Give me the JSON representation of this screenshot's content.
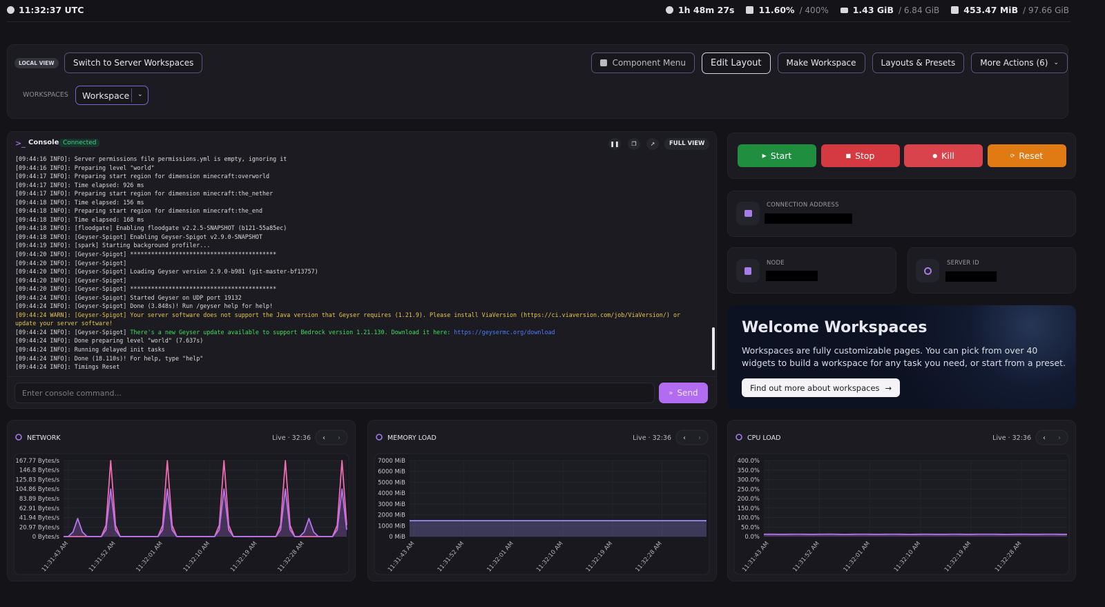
{
  "status_bar": {
    "time": "11:32:37 UTC",
    "uptime": "1h 48m 27s",
    "cpu": "11.60%",
    "cpu_limit": "/ 400%",
    "memory": "1.43 GiB",
    "memory_limit": "/ 6.84 GiB",
    "disk": "453.47 MiB",
    "disk_limit": "/ 97.66 GiB"
  },
  "toolbar": {
    "view_badge": "LOCAL VIEW",
    "switch_button": "Switch to Server Workspaces",
    "actions": [
      "Component Menu",
      "Edit Layout",
      "Make Workspace",
      "Layouts & Presets",
      "More Actions (6)"
    ],
    "workspaces_label": "WORKSPACES",
    "workspace_select": "Workspace"
  },
  "console": {
    "title": "Console",
    "status": "Connected",
    "full_view": "FULL VIEW",
    "lines": [
      {
        "text": "[09:44:16 INFO]: Server permissions file permissions.yml is empty, ignoring it"
      },
      {
        "text": "[09:44:16 INFO]: Preparing level \"world\""
      },
      {
        "text": "[09:44:17 INFO]: Preparing start region for dimension minecraft:overworld"
      },
      {
        "text": "[09:44:17 INFO]: Time elapsed: 926 ms"
      },
      {
        "text": "[09:44:17 INFO]: Preparing start region for dimension minecraft:the_nether"
      },
      {
        "text": "[09:44:18 INFO]: Time elapsed: 156 ms"
      },
      {
        "text": "[09:44:18 INFO]: Preparing start region for dimension minecraft:the_end"
      },
      {
        "text": "[09:44:18 INFO]: Time elapsed: 168 ms"
      },
      {
        "text": "[09:44:18 INFO]: [floodgate] Enabling floodgate v2.2.5-SNAPSHOT (b121-55a85ec)"
      },
      {
        "text": "[09:44:18 INFO]: [Geyser-Spigot] Enabling Geyser-Spigot v2.9.0-SNAPSHOT"
      },
      {
        "text": "[09:44:19 INFO]: [spark] Starting background profiler..."
      },
      {
        "text": "[09:44:20 INFO]: [Geyser-Spigot] ******************************************"
      },
      {
        "text": "[09:44:20 INFO]: [Geyser-Spigot]"
      },
      {
        "text": "[09:44:20 INFO]: [Geyser-Spigot] Loading Geyser version 2.9.0-b981 (git-master-bf13757)"
      },
      {
        "text": "[09:44:20 INFO]: [Geyser-Spigot]"
      },
      {
        "text": "[09:44:20 INFO]: [Geyser-Spigot] ******************************************"
      },
      {
        "text": "[09:44:24 INFO]: [Geyser-Spigot] Started Geyser on UDP port 19132"
      },
      {
        "text": "[09:44:24 INFO]: [Geyser-Spigot] Done (3.848s)! Run /geyser help for help!"
      },
      {
        "text": "[09:44:24 WARN]: [Geyser-Spigot] Your server software does not support the Java version that Geyser requires (1.21.9). Please install ViaVersion (https://ci.viaversion.com/job/ViaVersion/) or",
        "color": "#e6c84a"
      },
      {
        "text": "update your server software!",
        "color": "#e6c84a"
      },
      {
        "text": "[09:44:24 INFO]: [Geyser-Spigot] ",
        "rest": "There's a new Geyser update available to support Bedrock version 1.21.130. Download it here: ",
        "rest_color": "#3ee05a",
        "link": "https://geysermc.org/download"
      },
      {
        "text": "[09:44:24 INFO]: Done preparing level \"world\" (7.637s)"
      },
      {
        "text": "[09:44:24 INFO]: Running delayed init tasks"
      },
      {
        "text": "[09:44:24 INFO]: Done (18.110s)! For help, type \"help\""
      },
      {
        "text": "[09:44:24 INFO]: Timings Reset"
      }
    ],
    "input_placeholder": "Enter console command...",
    "send": "Send"
  },
  "power": [
    {
      "label": "Start",
      "color": "#1f8e3f"
    },
    {
      "label": "Stop",
      "color": "#d43a40"
    },
    {
      "label": "Kill",
      "color": "#d9434b"
    },
    {
      "label": "Reset",
      "color": "#e07a12"
    }
  ],
  "info": {
    "connection_label": "CONNECTION ADDRESS",
    "node_label": "NODE",
    "server_id_label": "SERVER ID"
  },
  "welcome": {
    "title": "Welcome Workspaces",
    "text": "Workspaces are fully customizable pages. You can pick from over 40 widgets to build a workspace for any task you need, or start from a preset.",
    "button": "Find out more about workspaces"
  },
  "charts": [
    {
      "type": "line",
      "title": "NETWORK",
      "live": "Live · 32:36",
      "ylim": [
        0,
        167.77
      ],
      "yticks": [
        {
          "value": 0,
          "label": "0 Bytes/s"
        },
        {
          "value": 20.97,
          "label": "20.97 Bytes/s"
        },
        {
          "value": 41.94,
          "label": "41.94 Bytes/s"
        },
        {
          "value": 62.91,
          "label": "62.91 Bytes/s"
        },
        {
          "value": 83.89,
          "label": "83.89 Bytes/s"
        },
        {
          "value": 104.86,
          "label": "104.86 Bytes/s"
        },
        {
          "value": 125.83,
          "label": "125.83 Bytes/s"
        },
        {
          "value": 146.8,
          "label": "146.8 Bytes/s"
        },
        {
          "value": 167.77,
          "label": "167.77 Bytes/s"
        }
      ],
      "xlim": [
        0,
        60
      ],
      "xticks": [
        {
          "value": 1,
          "label": "11:31:43 AM"
        },
        {
          "value": 11,
          "label": "11:31:52 AM"
        },
        {
          "value": 21,
          "label": "11:32:01 AM"
        },
        {
          "value": 31,
          "label": "11:32:10 AM"
        },
        {
          "value": 41,
          "label": "11:32:19 AM"
        },
        {
          "value": 51,
          "label": "11:32:28 AM"
        }
      ],
      "series": [
        {
          "color": "#f06bb0",
          "values": [
            0,
            0,
            0,
            0,
            0,
            0,
            0,
            0,
            0,
            25,
            167.77,
            25,
            0,
            0,
            0,
            0,
            0,
            0,
            0,
            0,
            0,
            25,
            167.77,
            25,
            0,
            0,
            0,
            0,
            0,
            0,
            0,
            0,
            0,
            25,
            167.77,
            25,
            0,
            0,
            0,
            0,
            0,
            0,
            0,
            0,
            0,
            0,
            25,
            167.77,
            25,
            0,
            0,
            0,
            0,
            0,
            0,
            0,
            0,
            0,
            25,
            167.77,
            25
          ]
        },
        {
          "color": "#b774f0",
          "fill": true,
          "values": [
            0,
            0,
            10,
            40,
            10,
            0,
            0,
            0,
            0,
            15,
            104.86,
            15,
            0,
            0,
            0,
            0,
            0,
            0,
            0,
            0,
            0,
            15,
            104.86,
            15,
            0,
            0,
            0,
            0,
            0,
            0,
            0,
            0,
            0,
            15,
            104.86,
            15,
            0,
            0,
            0,
            0,
            0,
            0,
            0,
            0,
            0,
            0,
            15,
            104.86,
            15,
            0,
            0,
            10,
            40,
            10,
            0,
            0,
            0,
            0,
            15,
            104.86,
            15
          ]
        }
      ]
    },
    {
      "type": "line",
      "title": "MEMORY LOAD",
      "live": "Live · 32:36",
      "ylim": [
        0,
        7000
      ],
      "yticks": [
        {
          "value": 0,
          "label": "0 MiB"
        },
        {
          "value": 1000,
          "label": "1000 MiB"
        },
        {
          "value": 2000,
          "label": "2000 MiB"
        },
        {
          "value": 3000,
          "label": "3000 MiB"
        },
        {
          "value": 4000,
          "label": "4000 MiB"
        },
        {
          "value": 5000,
          "label": "5000 MiB"
        },
        {
          "value": 6000,
          "label": "6000 MiB"
        },
        {
          "value": 7000,
          "label": "7000 MiB"
        }
      ],
      "xlim": [
        0,
        60
      ],
      "xticks": [
        {
          "value": 1,
          "label": "11:31:43 AM"
        },
        {
          "value": 11,
          "label": "11:31:52 AM"
        },
        {
          "value": 21,
          "label": "11:32:01 AM"
        },
        {
          "value": 31,
          "label": "11:32:10 AM"
        },
        {
          "value": 41,
          "label": "11:32:19 AM"
        },
        {
          "value": 51,
          "label": "11:32:28 AM"
        }
      ],
      "series": [
        {
          "color": "#9a8cf5",
          "fill": true,
          "values": [
            1464,
            1464,
            1464,
            1464,
            1464,
            1464,
            1464,
            1464,
            1464,
            1464,
            1464,
            1464,
            1464,
            1464,
            1464,
            1464,
            1464,
            1464,
            1464,
            1464,
            1464,
            1464,
            1464,
            1464,
            1464,
            1464,
            1464,
            1464,
            1464,
            1464,
            1464,
            1464,
            1464,
            1464,
            1464,
            1464,
            1464,
            1464,
            1464,
            1464,
            1464,
            1464,
            1464,
            1464,
            1464,
            1464,
            1464,
            1464,
            1464,
            1464,
            1464,
            1464,
            1464,
            1464,
            1464,
            1464,
            1464,
            1464,
            1464,
            1464,
            1464
          ]
        }
      ]
    },
    {
      "type": "line",
      "title": "CPU LOAD",
      "live": "Live · 32:36",
      "ylim": [
        0,
        400
      ],
      "yticks": [
        {
          "value": 0,
          "label": "0.0%"
        },
        {
          "value": 50,
          "label": "50.0%"
        },
        {
          "value": 100,
          "label": "100.0%"
        },
        {
          "value": 150,
          "label": "150.0%"
        },
        {
          "value": 200,
          "label": "200.0%"
        },
        {
          "value": 250,
          "label": "250.0%"
        },
        {
          "value": 300,
          "label": "300.0%"
        },
        {
          "value": 350,
          "label": "350.0%"
        },
        {
          "value": 400,
          "label": "400.0%"
        }
      ],
      "xlim": [
        0,
        60
      ],
      "xticks": [
        {
          "value": 1,
          "label": "11:31:43 AM"
        },
        {
          "value": 11,
          "label": "11:31:52 AM"
        },
        {
          "value": 21,
          "label": "11:32:01 AM"
        },
        {
          "value": 31,
          "label": "11:32:10 AM"
        },
        {
          "value": 41,
          "label": "11:32:19 AM"
        },
        {
          "value": 51,
          "label": "11:32:28 AM"
        }
      ],
      "series": [
        {
          "color": "#b774f0",
          "fill": true,
          "values": [
            12,
            12.4,
            12.1,
            11.8,
            11.6,
            11.9,
            12.2,
            12.5,
            12.1,
            11.7,
            11.5,
            11.9,
            12.3,
            12.6,
            12.2,
            11.8,
            11.4,
            11.7,
            12,
            12.4,
            12.2,
            11.9,
            11.6,
            11.8,
            12.1,
            12.5,
            12.3,
            11.9,
            11.5,
            11.3,
            11.6,
            11.9,
            12.2,
            12,
            11.7,
            11.5,
            11.8,
            12.2,
            12.4,
            12.1,
            11.8,
            11.6,
            11.9,
            12.3,
            12.5,
            12.2,
            11.9,
            11.6,
            11.4,
            11.7,
            12,
            12.3,
            12.1,
            11.8,
            11.6,
            11.9,
            12.2,
            12.4,
            12,
            11.7,
            11.6
          ]
        }
      ]
    }
  ]
}
